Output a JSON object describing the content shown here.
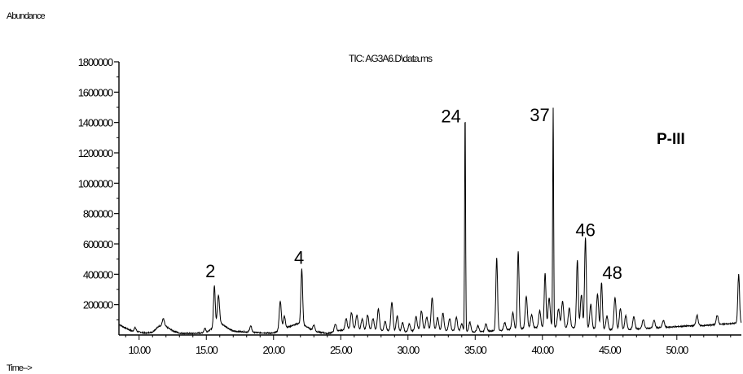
{
  "chart_data": {
    "type": "line",
    "title": "TIC: AG3A6.D\\data.ms",
    "ylabel": "Abundance",
    "xlabel": "Time-->",
    "sample_label": "P-III",
    "xlim": [
      8.5,
      54.8
    ],
    "ylim": [
      0,
      1800000
    ],
    "yticks": [
      200000,
      400000,
      600000,
      800000,
      1000000,
      1200000,
      1400000,
      1600000,
      1800000
    ],
    "ytick_labels": [
      "200000",
      "400000",
      "600000",
      "800000",
      "1000000",
      "1200000",
      "1400000",
      "1600000",
      "1800000"
    ],
    "xticks": [
      10,
      15,
      20,
      25,
      30,
      35,
      40,
      45,
      50
    ],
    "xtick_labels": [
      "10.00",
      "15.00",
      "20.00",
      "25.00",
      "30.00",
      "35.00",
      "40.00",
      "45.00",
      "50.00"
    ],
    "grid": false,
    "line_color": "#000000",
    "baseline": [
      [
        8.5,
        70000
      ],
      [
        9.0,
        45000
      ],
      [
        9.5,
        25000
      ],
      [
        10.0,
        20000
      ],
      [
        10.5,
        12000
      ],
      [
        11.0,
        20000
      ],
      [
        11.5,
        60000
      ],
      [
        12.0,
        55000
      ],
      [
        12.5,
        28000
      ],
      [
        13.0,
        12000
      ],
      [
        14.0,
        10000
      ],
      [
        15.0,
        15000
      ],
      [
        16.0,
        80000
      ],
      [
        17.0,
        25000
      ],
      [
        18.0,
        20000
      ],
      [
        19.0,
        15000
      ],
      [
        20.0,
        12000
      ],
      [
        21.0,
        50000
      ],
      [
        22.0,
        80000
      ],
      [
        23.0,
        25000
      ],
      [
        24.0,
        10000
      ],
      [
        25.0,
        30000
      ],
      [
        26.0,
        40000
      ],
      [
        27.0,
        35000
      ],
      [
        28.0,
        30000
      ],
      [
        29.0,
        25000
      ],
      [
        30.0,
        20000
      ],
      [
        31.0,
        40000
      ],
      [
        32.0,
        35000
      ],
      [
        33.0,
        30000
      ],
      [
        34.0,
        25000
      ],
      [
        35.0,
        20000
      ],
      [
        36.0,
        25000
      ],
      [
        37.0,
        30000
      ],
      [
        38.0,
        40000
      ],
      [
        39.0,
        45000
      ],
      [
        40.0,
        50000
      ],
      [
        41.0,
        55000
      ],
      [
        42.0,
        50000
      ],
      [
        43.0,
        45000
      ],
      [
        44.0,
        40000
      ],
      [
        45.0,
        35000
      ],
      [
        46.0,
        35000
      ],
      [
        47.0,
        40000
      ],
      [
        48.0,
        45000
      ],
      [
        49.0,
        50000
      ],
      [
        50.0,
        55000
      ],
      [
        51.0,
        60000
      ],
      [
        52.0,
        62000
      ],
      [
        53.0,
        68000
      ],
      [
        54.0,
        75000
      ],
      [
        54.8,
        80000
      ]
    ],
    "peaks": [
      [
        9.7,
        25000
      ],
      [
        11.8,
        50000
      ],
      [
        14.9,
        30000
      ],
      [
        15.6,
        270000
      ],
      [
        15.9,
        190000
      ],
      [
        18.3,
        40000
      ],
      [
        20.5,
        190000
      ],
      [
        20.8,
        80000
      ],
      [
        22.1,
        360000
      ],
      [
        23.0,
        40000
      ],
      [
        24.6,
        50000
      ],
      [
        25.4,
        75000
      ],
      [
        25.8,
        110000
      ],
      [
        26.2,
        90000
      ],
      [
        26.6,
        70000
      ],
      [
        27.0,
        95000
      ],
      [
        27.4,
        75000
      ],
      [
        27.8,
        140000
      ],
      [
        28.3,
        60000
      ],
      [
        28.8,
        190000
      ],
      [
        29.2,
        100000
      ],
      [
        29.6,
        60000
      ],
      [
        30.1,
        50000
      ],
      [
        30.6,
        90000
      ],
      [
        31.0,
        120000
      ],
      [
        31.4,
        80000
      ],
      [
        31.8,
        210000
      ],
      [
        32.2,
        80000
      ],
      [
        32.6,
        110000
      ],
      [
        33.1,
        80000
      ],
      [
        33.6,
        90000
      ],
      [
        34.0,
        50000
      ],
      [
        34.25,
        1430000
      ],
      [
        34.6,
        60000
      ],
      [
        35.2,
        40000
      ],
      [
        35.8,
        50000
      ],
      [
        36.6,
        480000
      ],
      [
        37.2,
        50000
      ],
      [
        37.8,
        110000
      ],
      [
        38.2,
        510000
      ],
      [
        38.8,
        210000
      ],
      [
        39.2,
        90000
      ],
      [
        39.8,
        110000
      ],
      [
        40.2,
        360000
      ],
      [
        40.5,
        190000
      ],
      [
        40.8,
        1440000
      ],
      [
        41.2,
        120000
      ],
      [
        41.5,
        170000
      ],
      [
        42.0,
        130000
      ],
      [
        42.6,
        450000
      ],
      [
        42.9,
        220000
      ],
      [
        43.2,
        600000
      ],
      [
        43.6,
        160000
      ],
      [
        44.1,
        230000
      ],
      [
        44.4,
        310000
      ],
      [
        44.8,
        90000
      ],
      [
        45.4,
        210000
      ],
      [
        45.8,
        140000
      ],
      [
        46.2,
        90000
      ],
      [
        46.8,
        80000
      ],
      [
        47.5,
        60000
      ],
      [
        48.3,
        50000
      ],
      [
        49.0,
        45000
      ],
      [
        51.5,
        70000
      ],
      [
        53.0,
        60000
      ],
      [
        54.6,
        320000
      ]
    ],
    "annotations": [
      {
        "label": "2",
        "x": 15.3,
        "y": 380000
      },
      {
        "label": "4",
        "x": 21.9,
        "y": 470000
      },
      {
        "label": "24",
        "x": 33.2,
        "y": 1400000
      },
      {
        "label": "37",
        "x": 39.8,
        "y": 1410000
      },
      {
        "label": "46",
        "x": 43.2,
        "y": 650000
      },
      {
        "label": "48",
        "x": 45.2,
        "y": 370000
      }
    ]
  }
}
